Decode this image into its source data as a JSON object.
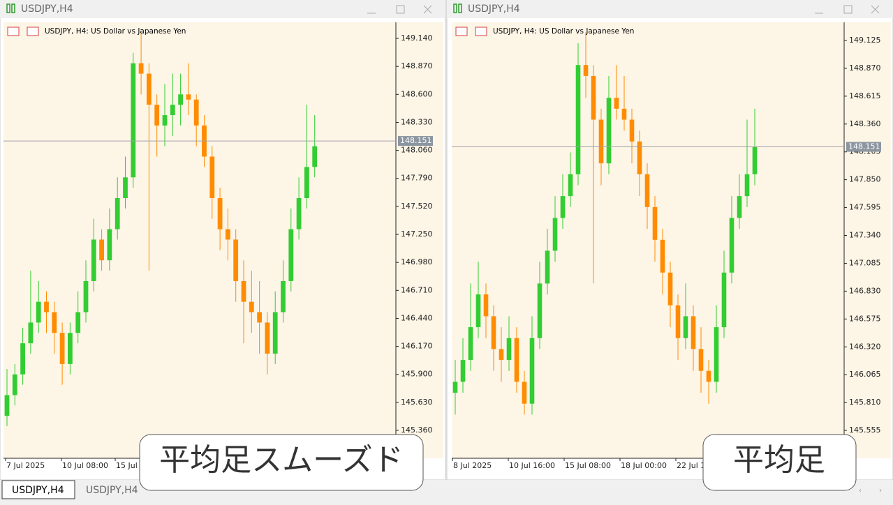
{
  "window_titles": [
    "USDJPY,H4",
    "USDJPY,H4"
  ],
  "tabs": [
    "USDJPY,H4",
    "USDJPY,H4"
  ],
  "overlays": [
    "平均足スムーズド",
    "平均足"
  ],
  "chart_data": [
    {
      "type": "candlestick",
      "title": "USDJPY, H4:  US Dollar vs Japanese Yen",
      "up_color": "#32cd32",
      "down_color": "#ff8c00",
      "ylim": [
        145.091,
        149.295
      ],
      "yticks": [
        {
          "value": 149.14,
          "label": "149.140"
        },
        {
          "value": 148.87,
          "label": "148.870"
        },
        {
          "value": 148.6,
          "label": "148.600"
        },
        {
          "value": 148.33,
          "label": "148.330"
        },
        {
          "value": 148.06,
          "label": "148.060"
        },
        {
          "value": 147.79,
          "label": "147.790"
        },
        {
          "value": 147.52,
          "label": "147.520"
        },
        {
          "value": 147.25,
          "label": "147.250"
        },
        {
          "value": 146.98,
          "label": "146.980"
        },
        {
          "value": 146.71,
          "label": "146.710"
        },
        {
          "value": 146.44,
          "label": "146.440"
        },
        {
          "value": 146.17,
          "label": "146.170"
        },
        {
          "value": 145.9,
          "label": "145.900"
        },
        {
          "value": 145.63,
          "label": "145.630"
        },
        {
          "value": 145.36,
          "label": "145.360"
        }
      ],
      "current_price": 148.151,
      "xtick_labels": [
        "7 Jul 2025",
        "10 Jul 08:00",
        "15 Jul"
      ],
      "candles": [
        [
          145.5,
          145.95,
          145.4,
          145.7
        ],
        [
          145.7,
          146.0,
          145.6,
          145.9
        ],
        [
          145.9,
          146.35,
          145.8,
          146.2
        ],
        [
          146.2,
          146.9,
          146.1,
          146.4
        ],
        [
          146.4,
          146.8,
          146.3,
          146.6
        ],
        [
          146.6,
          146.7,
          146.3,
          146.5
        ],
        [
          146.5,
          146.6,
          146.1,
          146.3
        ],
        [
          146.3,
          146.4,
          145.8,
          146.0
        ],
        [
          146.0,
          146.4,
          145.9,
          146.3
        ],
        [
          146.3,
          146.7,
          146.2,
          146.5
        ],
        [
          146.5,
          147.0,
          146.4,
          146.8
        ],
        [
          146.8,
          147.4,
          146.7,
          147.2
        ],
        [
          147.2,
          147.3,
          146.9,
          147.0
        ],
        [
          147.0,
          147.5,
          146.9,
          147.3
        ],
        [
          147.3,
          147.8,
          147.2,
          147.6
        ],
        [
          147.6,
          148.0,
          147.5,
          147.8
        ],
        [
          147.8,
          149.0,
          147.7,
          148.9
        ],
        [
          148.9,
          149.2,
          148.6,
          148.8
        ],
        [
          148.8,
          148.9,
          146.9,
          148.5
        ],
        [
          148.5,
          148.6,
          148.0,
          148.3
        ],
        [
          148.3,
          148.7,
          148.1,
          148.4
        ],
        [
          148.4,
          148.8,
          148.2,
          148.5
        ],
        [
          148.5,
          148.8,
          148.3,
          148.6
        ],
        [
          148.6,
          148.9,
          148.4,
          148.55
        ],
        [
          148.55,
          148.6,
          148.1,
          148.3
        ],
        [
          148.3,
          148.4,
          147.9,
          148.0
        ],
        [
          148.0,
          148.1,
          147.4,
          147.6
        ],
        [
          147.6,
          147.7,
          147.1,
          147.3
        ],
        [
          147.3,
          147.5,
          147.0,
          147.2
        ],
        [
          147.2,
          147.3,
          146.6,
          146.8
        ],
        [
          146.8,
          147.0,
          146.2,
          146.6
        ],
        [
          146.6,
          146.9,
          146.3,
          146.5
        ],
        [
          146.5,
          146.8,
          146.1,
          146.4
        ],
        [
          146.4,
          146.5,
          145.9,
          146.1
        ],
        [
          146.1,
          146.7,
          146.0,
          146.5
        ],
        [
          146.5,
          147.0,
          146.4,
          146.8
        ],
        [
          146.8,
          147.5,
          146.7,
          147.3
        ],
        [
          147.3,
          147.8,
          147.2,
          147.6
        ],
        [
          147.6,
          148.5,
          147.5,
          147.9
        ],
        [
          147.9,
          148.4,
          147.8,
          148.1
        ]
      ]
    },
    {
      "type": "candlestick",
      "title": "USDJPY, H4:  US Dollar vs Japanese Yen",
      "up_color": "#32cd32",
      "down_color": "#ff8c00",
      "ylim": [
        145.3,
        149.291
      ],
      "yticks": [
        149.125,
        {
          "value": 148.87,
          "label": "148.870"
        },
        148.615,
        {
          "value": 148.36,
          "label": "148.360"
        },
        148.105,
        {
          "value": 147.85,
          "label": "147.850"
        },
        147.595,
        {
          "value": 147.34,
          "label": "147.340"
        },
        147.085,
        {
          "value": 146.83,
          "label": "146.830"
        },
        146.575,
        {
          "value": 146.32,
          "label": "146.320"
        },
        146.065,
        {
          "value": 145.81,
          "label": "145.810"
        },
        145.555
      ],
      "current_price": 148.151,
      "xtick_labels": [
        "8 Jul 2025",
        "10 Jul 16:00",
        "15 Jul 08:00",
        "18 Jul 00:00",
        "22 Jul 1"
      ],
      "candles": [
        [
          145.9,
          146.2,
          145.7,
          146.0
        ],
        [
          146.0,
          146.4,
          145.9,
          146.2
        ],
        [
          146.2,
          146.9,
          146.1,
          146.5
        ],
        [
          146.5,
          147.1,
          146.4,
          146.8
        ],
        [
          146.8,
          146.9,
          146.4,
          146.6
        ],
        [
          146.6,
          146.7,
          146.1,
          146.3
        ],
        [
          146.3,
          146.5,
          146.0,
          146.2
        ],
        [
          146.2,
          146.6,
          146.1,
          146.4
        ],
        [
          146.4,
          146.5,
          145.9,
          146.0
        ],
        [
          146.0,
          146.1,
          145.7,
          145.8
        ],
        [
          145.8,
          146.6,
          145.7,
          146.4
        ],
        [
          146.4,
          147.1,
          146.3,
          146.9
        ],
        [
          146.9,
          147.4,
          146.8,
          147.2
        ],
        [
          147.2,
          147.7,
          147.1,
          147.5
        ],
        [
          147.5,
          147.9,
          147.4,
          147.7
        ],
        [
          147.7,
          148.1,
          147.6,
          147.9
        ],
        [
          147.9,
          149.1,
          147.8,
          148.9
        ],
        [
          148.9,
          149.2,
          148.6,
          148.8
        ],
        [
          148.8,
          148.9,
          146.9,
          148.4
        ],
        [
          148.4,
          148.5,
          147.8,
          148.0
        ],
        [
          148.0,
          148.8,
          147.9,
          148.6
        ],
        [
          148.6,
          148.9,
          148.4,
          148.5
        ],
        [
          148.5,
          148.8,
          148.3,
          148.4
        ],
        [
          148.4,
          148.5,
          148.0,
          148.2
        ],
        [
          148.2,
          148.3,
          147.7,
          147.9
        ],
        [
          147.9,
          148.0,
          147.4,
          147.6
        ],
        [
          147.6,
          147.7,
          147.1,
          147.3
        ],
        [
          147.3,
          147.4,
          146.8,
          147.0
        ],
        [
          147.0,
          147.1,
          146.5,
          146.7
        ],
        [
          146.7,
          146.8,
          146.2,
          146.4
        ],
        [
          146.4,
          146.9,
          146.3,
          146.6
        ],
        [
          146.6,
          146.7,
          146.1,
          146.3
        ],
        [
          146.3,
          146.5,
          145.9,
          146.1
        ],
        [
          146.1,
          146.2,
          145.8,
          146.0
        ],
        [
          146.0,
          146.7,
          145.9,
          146.5
        ],
        [
          146.5,
          147.2,
          146.4,
          147.0
        ],
        [
          147.0,
          147.7,
          146.9,
          147.5
        ],
        [
          147.5,
          147.9,
          147.4,
          147.7
        ],
        [
          147.7,
          148.4,
          147.6,
          147.9
        ],
        [
          147.9,
          148.5,
          147.8,
          148.15
        ]
      ]
    }
  ]
}
